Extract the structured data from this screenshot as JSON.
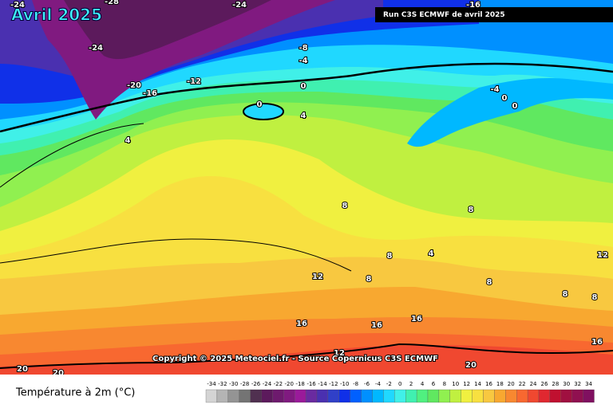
{
  "header": {
    "title": "Avril 2025",
    "run_label": "Run C3S ECMWF de avril 2025"
  },
  "copyright": "Copyright © 2025 Meteociel.fr - Source Copernicus C3S ECMWF",
  "legend": {
    "title": "Température à 2m (°C)",
    "items": [
      {
        "value": -34,
        "color": "#d4d4d4"
      },
      {
        "value": -32,
        "color": "#b4b4b4"
      },
      {
        "value": -30,
        "color": "#949494"
      },
      {
        "value": -28,
        "color": "#747474"
      },
      {
        "value": -26,
        "color": "#503050"
      },
      {
        "value": -24,
        "color": "#5c1a5c"
      },
      {
        "value": -22,
        "color": "#6e1a6e"
      },
      {
        "value": -20,
        "color": "#801a80"
      },
      {
        "value": -18,
        "color": "#9a1a9a"
      },
      {
        "value": -16,
        "color": "#6a2aa0"
      },
      {
        "value": -14,
        "color": "#4a30b0"
      },
      {
        "value": -12,
        "color": "#3040c8"
      },
      {
        "value": -10,
        "color": "#1030e8"
      },
      {
        "value": -8,
        "color": "#0060ff"
      },
      {
        "value": -6,
        "color": "#0090ff"
      },
      {
        "value": -4,
        "color": "#00b8ff"
      },
      {
        "value": -2,
        "color": "#20d8ff"
      },
      {
        "value": 0,
        "color": "#40f0e8"
      },
      {
        "value": 2,
        "color": "#40f0b0"
      },
      {
        "value": 4,
        "color": "#50f080"
      },
      {
        "value": 6,
        "color": "#60e860"
      },
      {
        "value": 8,
        "color": "#90f050"
      },
      {
        "value": 10,
        "color": "#c0f040"
      },
      {
        "value": 12,
        "color": "#f0f040"
      },
      {
        "value": 14,
        "color": "#f8e040"
      },
      {
        "value": 16,
        "color": "#f8c840"
      },
      {
        "value": 18,
        "color": "#f8a830"
      },
      {
        "value": 20,
        "color": "#f88830"
      },
      {
        "value": 22,
        "color": "#f86830"
      },
      {
        "value": 24,
        "color": "#f04830"
      },
      {
        "value": 26,
        "color": "#e02830"
      },
      {
        "value": 28,
        "color": "#c01030"
      },
      {
        "value": 30,
        "color": "#a01040"
      },
      {
        "value": 32,
        "color": "#901050"
      },
      {
        "value": 34,
        "color": "#801060"
      }
    ]
  },
  "contour_labels": [
    -24,
    -28,
    -24,
    -16,
    -24,
    -20,
    -16,
    -12,
    -8,
    -4,
    0,
    0,
    4,
    4,
    -4,
    0,
    0,
    8,
    8,
    8,
    4,
    8,
    8,
    12,
    8,
    12,
    8,
    16,
    16,
    16,
    16,
    12,
    20,
    20,
    20
  ]
}
